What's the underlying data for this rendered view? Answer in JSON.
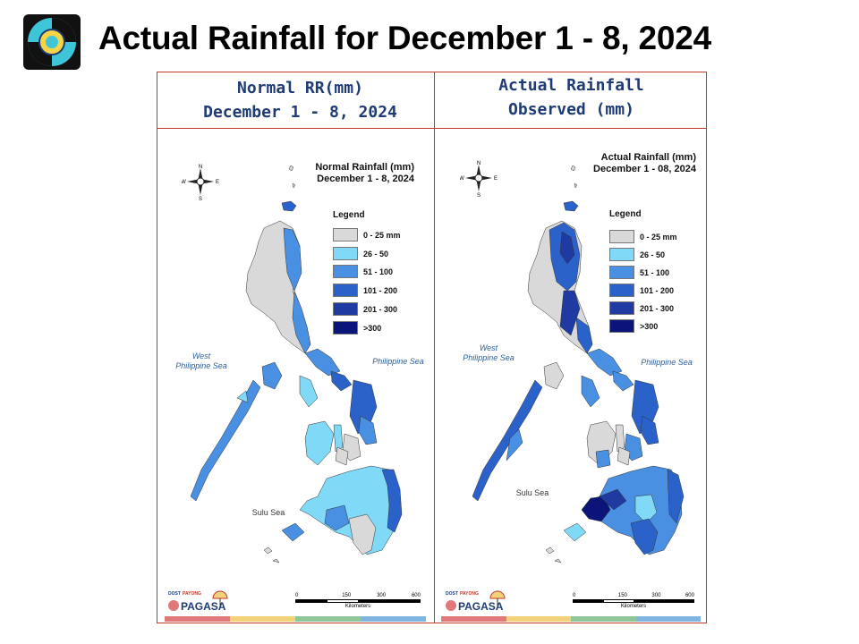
{
  "slide": {
    "title": "Actual Rainfall for December 1 - 8, 2024"
  },
  "panels": {
    "left": {
      "header_line1": "Normal RR(mm)",
      "header_line2": "December 1 - 8, 2024",
      "map_title_line1": "Normal Rainfall (mm)",
      "map_title_line2": "December 1 - 8, 2024"
    },
    "right": {
      "header_line1": "Actual Rainfall",
      "header_line2": "Observed (mm)",
      "map_title_line1": "Actual Rainfall (mm)",
      "map_title_line2": "December 1 - 08, 2024"
    }
  },
  "legend": {
    "title": "Legend",
    "items": [
      {
        "label": "0 - 25 mm",
        "color": "#d9d9d9"
      },
      {
        "label": "26 - 50",
        "color": "#7fd9f7"
      },
      {
        "label": "51 - 100",
        "color": "#4a90e2"
      },
      {
        "label": "101 - 200",
        "color": "#2b62c9"
      },
      {
        "label": "201 - 300",
        "color": "#1f3aa0"
      },
      {
        "label": ">300",
        "color": "#0b1478"
      }
    ]
  },
  "seas": {
    "west_line1": "West",
    "west_line2": "Philippine Sea",
    "east": "Philippine Sea",
    "sulu": "Sulu Sea"
  },
  "compass": {
    "n": "N",
    "s": "S",
    "e": "E",
    "w": "W"
  },
  "scale_bar": {
    "ticks": [
      "0",
      "150",
      "300",
      "600"
    ],
    "unit": "Kilometers"
  },
  "branding": {
    "pagasa": "PAGASA",
    "dost": "DOST",
    "payong": "PAYONG"
  },
  "footer_colors": [
    "#e07a7a",
    "#f2d37a",
    "#8fc79a",
    "#7fb5e0"
  ]
}
